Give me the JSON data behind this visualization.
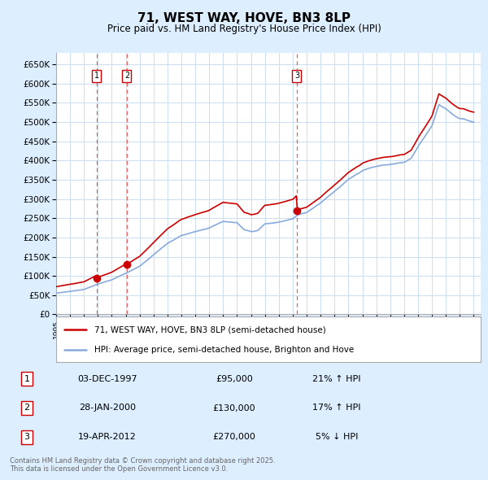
{
  "title": "71, WEST WAY, HOVE, BN3 8LP",
  "subtitle": "Price paid vs. HM Land Registry's House Price Index (HPI)",
  "legend_line1": "71, WEST WAY, HOVE, BN3 8LP (semi-detached house)",
  "legend_line2": "HPI: Average price, semi-detached house, Brighton and Hove",
  "footer": "Contains HM Land Registry data © Crown copyright and database right 2025.\nThis data is licensed under the Open Government Licence v3.0.",
  "transactions": [
    {
      "num": 1,
      "date": "03-DEC-1997",
      "price": 95000,
      "hpi_pct": "21% ↑ HPI",
      "year": 1997.92
    },
    {
      "num": 2,
      "date": "28-JAN-2000",
      "price": 130000,
      "hpi_pct": "17% ↑ HPI",
      "year": 2000.08
    },
    {
      "num": 3,
      "date": "19-APR-2012",
      "price": 270000,
      "hpi_pct": "5% ↓ HPI",
      "year": 2012.29
    }
  ],
  "price_line_color": "#cc0000",
  "hpi_line_color": "#88aadd",
  "vline_color": "#cc0000",
  "background_color": "#ddeeff",
  "plot_bg_color": "#ffffff",
  "grid_color": "#ccddee",
  "ylim": [
    0,
    680000
  ],
  "yticks": [
    0,
    50000,
    100000,
    150000,
    200000,
    250000,
    300000,
    350000,
    400000,
    450000,
    500000,
    550000,
    600000,
    650000
  ],
  "xlim_start": 1995.0,
  "xlim_end": 2025.5
}
